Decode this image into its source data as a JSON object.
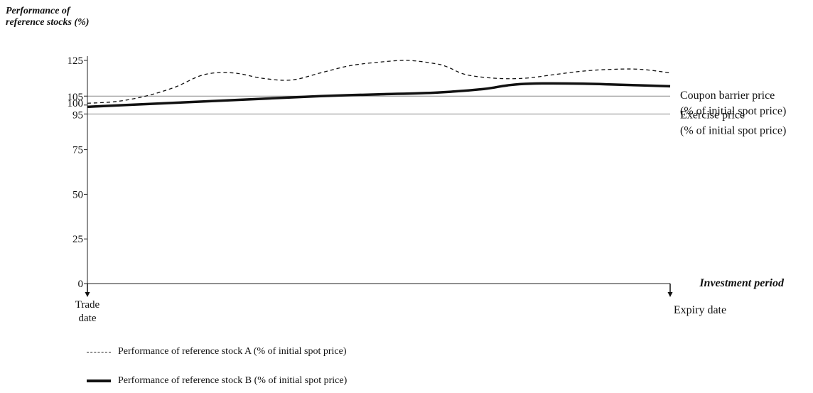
{
  "chart_data": {
    "type": "line",
    "ylabel_lines": [
      "Performance of",
      "reference stocks (%)"
    ],
    "xlabel": "Investment period",
    "y_ticks": [
      0,
      25,
      50,
      75,
      95,
      100,
      105,
      125
    ],
    "ylim": [
      0,
      125
    ],
    "x_range": [
      0,
      100
    ],
    "x_endpoints": {
      "start": [
        "Trade",
        "date"
      ],
      "end": [
        "Expiry date"
      ]
    },
    "reference_lines": [
      {
        "value": 105,
        "label_lines": [
          "Coupon barrier price",
          "(% of initial spot price)"
        ]
      },
      {
        "value": 95,
        "label_lines": [
          "Exercise price",
          "(% of initial spot price)"
        ]
      }
    ],
    "series": [
      {
        "name": "Performance of reference stock A (% of initial spot price)",
        "style": "dashed",
        "x": [
          0,
          5,
          10,
          15,
          20,
          25,
          30,
          35,
          40,
          45,
          50,
          55,
          60,
          62,
          65,
          70,
          75,
          80,
          85,
          90,
          95,
          100
        ],
        "y": [
          101,
          102,
          105,
          110,
          117,
          118,
          115,
          114,
          118,
          122,
          124,
          125,
          123,
          121,
          117,
          115,
          115,
          117,
          119,
          120,
          120,
          118
        ]
      },
      {
        "name": "Performance of reference stock B (% of initial spot price)",
        "style": "solid",
        "x": [
          0,
          10,
          20,
          30,
          40,
          50,
          60,
          68,
          72,
          76,
          85,
          90,
          100
        ],
        "y": [
          99,
          100.5,
          102,
          103.5,
          105,
          106,
          107,
          109,
          111,
          112,
          112,
          111.5,
          110.5
        ]
      }
    ]
  }
}
